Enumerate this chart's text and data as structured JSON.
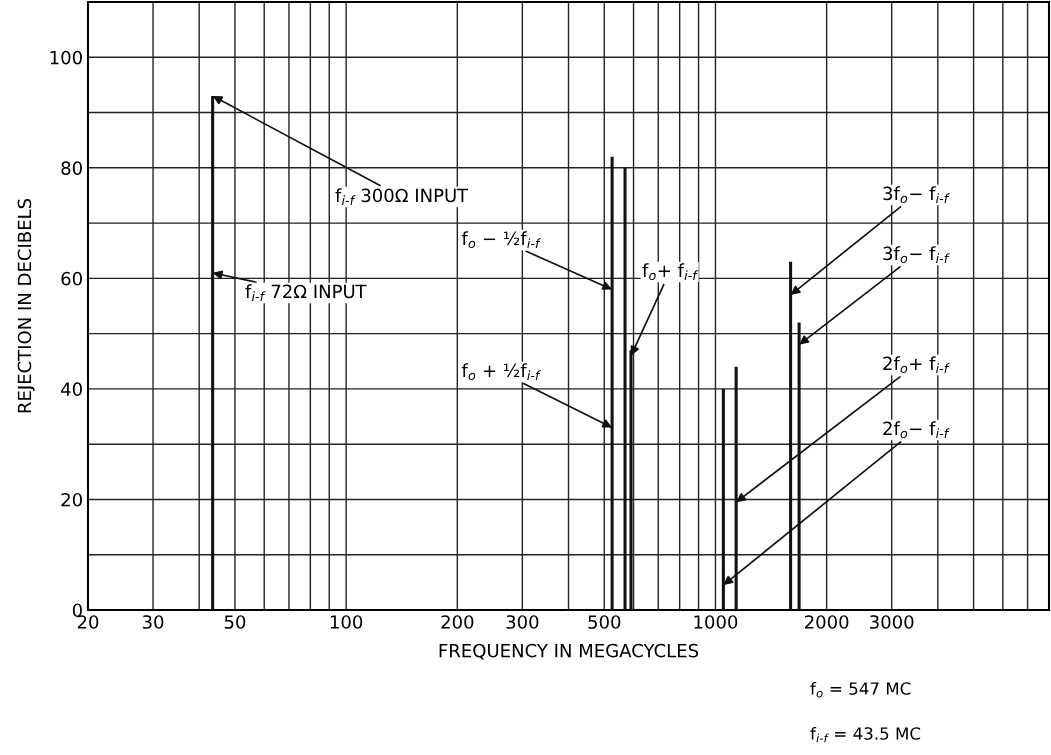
{
  "chart_data": {
    "type": "bar",
    "xlabel": "FREQUENCY IN MEGACYCLES",
    "ylabel": "REJECTION IN DECIBELS",
    "x": [
      43.5,
      525,
      569,
      590.5,
      1050.5,
      1137.5,
      1597.5,
      1684.5
    ],
    "values": [
      93,
      82,
      80,
      47,
      40,
      44,
      63,
      52
    ],
    "color": "#111111",
    "log": "x",
    "xlim": [
      20,
      8000
    ],
    "xticks": [
      20,
      30,
      {
        "value": 40,
        "label": null
      },
      50,
      {
        "value": 60,
        "label": null
      },
      {
        "value": 70,
        "label": null
      },
      {
        "value": 80,
        "label": null
      },
      {
        "value": 90,
        "label": null
      },
      100,
      200,
      300,
      {
        "value": 400,
        "label": null
      },
      500,
      {
        "value": 600,
        "label": null
      },
      {
        "value": 700,
        "label": null
      },
      {
        "value": 800,
        "label": null
      },
      {
        "value": 900,
        "label": null
      },
      1000,
      2000,
      3000,
      {
        "value": 4000,
        "label": null
      },
      {
        "value": 5000,
        "label": null
      },
      {
        "value": 6000,
        "label": null
      },
      {
        "value": 7000,
        "label": null
      }
    ],
    "ylim": [
      0,
      110
    ],
    "yticks": [
      0,
      {
        "value": 10,
        "label": null
      },
      20,
      {
        "value": 30,
        "label": null
      },
      40,
      {
        "value": 50,
        "label": null
      },
      60,
      {
        "value": 70,
        "label": null
      },
      80,
      {
        "value": 90,
        "label": null
      },
      100
    ],
    "grid": true,
    "annotations": [
      {
        "text": "f$_{i-f}$ 300Ω INPUT",
        "x": 43.5,
        "y": 93
      },
      {
        "text": "f$_{i-f}$ 72Ω INPUT",
        "x": 43.5,
        "y": 61
      },
      {
        "text": "f$_{o}$ − ½f$_{i-f}$",
        "x": 525,
        "y": 58
      },
      {
        "text": "f$_{o}$ + ½f$_{i-f}$",
        "x": 525,
        "y": 33
      },
      {
        "text": "f$_{o}$+ f$_{i-f}$",
        "x": 590.5,
        "y": 46
      },
      {
        "text": "3f$_{o}$− f$_{i-f}$",
        "x": 1597.5,
        "y": 57
      },
      {
        "text": "3f$_{o}$− f$_{i-f}$",
        "x": 1684.5,
        "y": 48
      },
      {
        "text": "2f$_{o}$+ f$_{i-f}$",
        "x": 1137.5,
        "y": 19.5
      },
      {
        "text": "2f$_{o}$− f$_{i-f}$",
        "x": 1050.5,
        "y": 4.5
      },
      "f$_{o}$ = 547 MC",
      "f$_{i-f}$ = 43.5 MC"
    ]
  }
}
